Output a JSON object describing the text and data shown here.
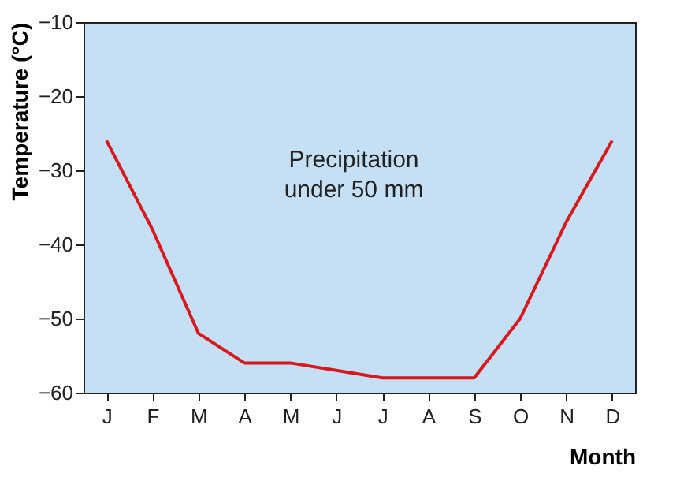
{
  "chart_data": {
    "type": "line",
    "categories": [
      "J",
      "F",
      "M",
      "A",
      "M",
      "J",
      "J",
      "A",
      "S",
      "O",
      "N",
      "D"
    ],
    "series": [
      {
        "color": "#d7191f",
        "values": [
          -26,
          -38,
          -52,
          -56,
          -56,
          -57,
          -58,
          -58,
          -58,
          -50,
          -37,
          -26
        ]
      }
    ],
    "xlabel": "Month",
    "ylabel": "Temperature (°C)",
    "ylim": [
      -60,
      -10
    ],
    "yticks": [
      -60,
      -50,
      -40,
      -30,
      -20,
      -10
    ],
    "annotations": [
      "Precipitation\nunder 50 mm"
    ],
    "grid": false,
    "marker": "none",
    "line_style": "solid"
  }
}
